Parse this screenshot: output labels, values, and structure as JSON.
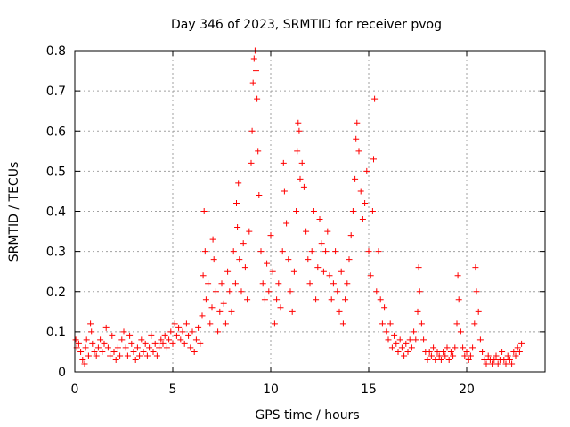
{
  "chart_data": {
    "type": "scatter",
    "title": "Day 346 of 2023, SRMTID for receiver pvog",
    "xlabel": "GPS time / hours",
    "ylabel": "SRMTID / TECUs",
    "xlim": [
      0,
      24
    ],
    "ylim": [
      0,
      0.8
    ],
    "xticks": [
      0,
      5,
      10,
      15,
      20
    ],
    "xtick_labels": [
      "0",
      "5",
      "10",
      "15",
      "20"
    ],
    "yticks": [
      0,
      0.1,
      0.2,
      0.3,
      0.4,
      0.5,
      0.6,
      0.7,
      0.8
    ],
    "ytick_labels": [
      "0",
      "0.1",
      "0.2",
      "0.3",
      "0.4",
      "0.5",
      "0.6",
      "0.7",
      "0.8"
    ],
    "grid": true,
    "marker": "+",
    "color": "#ff0000",
    "series": [
      {
        "name": "SRMTID",
        "points": [
          [
            0.05,
            0.08
          ],
          [
            0.1,
            0.06
          ],
          [
            0.2,
            0.07
          ],
          [
            0.3,
            0.05
          ],
          [
            0.4,
            0.03
          ],
          [
            0.5,
            0.02
          ],
          [
            0.55,
            0.06
          ],
          [
            0.6,
            0.08
          ],
          [
            0.7,
            0.04
          ],
          [
            0.8,
            0.12
          ],
          [
            0.85,
            0.1
          ],
          [
            0.9,
            0.07
          ],
          [
            1.0,
            0.05
          ],
          [
            1.1,
            0.04
          ],
          [
            1.2,
            0.06
          ],
          [
            1.3,
            0.08
          ],
          [
            1.4,
            0.05
          ],
          [
            1.5,
            0.07
          ],
          [
            1.6,
            0.11
          ],
          [
            1.7,
            0.06
          ],
          [
            1.8,
            0.04
          ],
          [
            1.9,
            0.09
          ],
          [
            2.0,
            0.05
          ],
          [
            2.1,
            0.03
          ],
          [
            2.2,
            0.06
          ],
          [
            2.3,
            0.04
          ],
          [
            2.4,
            0.08
          ],
          [
            2.5,
            0.1
          ],
          [
            2.6,
            0.06
          ],
          [
            2.7,
            0.04
          ],
          [
            2.8,
            0.09
          ],
          [
            2.9,
            0.07
          ],
          [
            3.0,
            0.05
          ],
          [
            3.1,
            0.03
          ],
          [
            3.2,
            0.06
          ],
          [
            3.3,
            0.04
          ],
          [
            3.4,
            0.08
          ],
          [
            3.5,
            0.05
          ],
          [
            3.6,
            0.07
          ],
          [
            3.7,
            0.04
          ],
          [
            3.8,
            0.06
          ],
          [
            3.9,
            0.09
          ],
          [
            4.0,
            0.05
          ],
          [
            4.1,
            0.07
          ],
          [
            4.2,
            0.04
          ],
          [
            4.3,
            0.06
          ],
          [
            4.4,
            0.08
          ],
          [
            4.5,
            0.07
          ],
          [
            4.6,
            0.09
          ],
          [
            4.7,
            0.06
          ],
          [
            4.8,
            0.08
          ],
          [
            4.9,
            0.1
          ],
          [
            5.0,
            0.07
          ],
          [
            5.1,
            0.12
          ],
          [
            5.2,
            0.09
          ],
          [
            5.3,
            0.11
          ],
          [
            5.4,
            0.08
          ],
          [
            5.5,
            0.1
          ],
          [
            5.6,
            0.07
          ],
          [
            5.7,
            0.12
          ],
          [
            5.8,
            0.09
          ],
          [
            5.9,
            0.06
          ],
          [
            6.0,
            0.1
          ],
          [
            6.1,
            0.05
          ],
          [
            6.2,
            0.08
          ],
          [
            6.3,
            0.11
          ],
          [
            6.4,
            0.07
          ],
          [
            6.5,
            0.14
          ],
          [
            6.55,
            0.24
          ],
          [
            6.6,
            0.4
          ],
          [
            6.65,
            0.3
          ],
          [
            6.7,
            0.18
          ],
          [
            6.8,
            0.22
          ],
          [
            6.9,
            0.12
          ],
          [
            7.0,
            0.16
          ],
          [
            7.05,
            0.33
          ],
          [
            7.1,
            0.28
          ],
          [
            7.2,
            0.2
          ],
          [
            7.3,
            0.1
          ],
          [
            7.4,
            0.15
          ],
          [
            7.5,
            0.22
          ],
          [
            7.6,
            0.17
          ],
          [
            7.7,
            0.12
          ],
          [
            7.8,
            0.25
          ],
          [
            7.9,
            0.2
          ],
          [
            8.0,
            0.15
          ],
          [
            8.1,
            0.3
          ],
          [
            8.2,
            0.22
          ],
          [
            8.25,
            0.42
          ],
          [
            8.3,
            0.36
          ],
          [
            8.35,
            0.47
          ],
          [
            8.4,
            0.28
          ],
          [
            8.5,
            0.2
          ],
          [
            8.6,
            0.32
          ],
          [
            8.7,
            0.26
          ],
          [
            8.8,
            0.18
          ],
          [
            8.9,
            0.35
          ],
          [
            9.0,
            0.52
          ],
          [
            9.05,
            0.6
          ],
          [
            9.1,
            0.72
          ],
          [
            9.15,
            0.78
          ],
          [
            9.2,
            0.8
          ],
          [
            9.25,
            0.75
          ],
          [
            9.3,
            0.68
          ],
          [
            9.35,
            0.55
          ],
          [
            9.4,
            0.44
          ],
          [
            9.5,
            0.3
          ],
          [
            9.6,
            0.22
          ],
          [
            9.7,
            0.18
          ],
          [
            9.8,
            0.27
          ],
          [
            9.9,
            0.2
          ],
          [
            10.0,
            0.34
          ],
          [
            10.1,
            0.25
          ],
          [
            10.2,
            0.12
          ],
          [
            10.3,
            0.18
          ],
          [
            10.4,
            0.22
          ],
          [
            10.5,
            0.16
          ],
          [
            10.6,
            0.3
          ],
          [
            10.65,
            0.52
          ],
          [
            10.7,
            0.45
          ],
          [
            10.8,
            0.37
          ],
          [
            10.9,
            0.28
          ],
          [
            11.0,
            0.2
          ],
          [
            11.1,
            0.15
          ],
          [
            11.2,
            0.25
          ],
          [
            11.3,
            0.4
          ],
          [
            11.35,
            0.55
          ],
          [
            11.4,
            0.62
          ],
          [
            11.45,
            0.6
          ],
          [
            11.5,
            0.48
          ],
          [
            11.6,
            0.52
          ],
          [
            11.7,
            0.46
          ],
          [
            11.8,
            0.35
          ],
          [
            11.9,
            0.28
          ],
          [
            12.0,
            0.22
          ],
          [
            12.1,
            0.3
          ],
          [
            12.2,
            0.4
          ],
          [
            12.3,
            0.18
          ],
          [
            12.4,
            0.26
          ],
          [
            12.5,
            0.38
          ],
          [
            12.6,
            0.32
          ],
          [
            12.7,
            0.25
          ],
          [
            12.8,
            0.3
          ],
          [
            12.9,
            0.35
          ],
          [
            13.0,
            0.24
          ],
          [
            13.1,
            0.18
          ],
          [
            13.2,
            0.22
          ],
          [
            13.3,
            0.3
          ],
          [
            13.4,
            0.2
          ],
          [
            13.5,
            0.15
          ],
          [
            13.6,
            0.25
          ],
          [
            13.7,
            0.12
          ],
          [
            13.8,
            0.18
          ],
          [
            13.9,
            0.22
          ],
          [
            14.0,
            0.28
          ],
          [
            14.1,
            0.34
          ],
          [
            14.2,
            0.4
          ],
          [
            14.3,
            0.48
          ],
          [
            14.35,
            0.58
          ],
          [
            14.4,
            0.62
          ],
          [
            14.5,
            0.55
          ],
          [
            14.6,
            0.45
          ],
          [
            14.7,
            0.38
          ],
          [
            14.8,
            0.42
          ],
          [
            14.9,
            0.5
          ],
          [
            15.0,
            0.3
          ],
          [
            15.1,
            0.24
          ],
          [
            15.2,
            0.4
          ],
          [
            15.25,
            0.53
          ],
          [
            15.3,
            0.68
          ],
          [
            15.4,
            0.2
          ],
          [
            15.5,
            0.3
          ],
          [
            15.6,
            0.18
          ],
          [
            15.7,
            0.12
          ],
          [
            15.8,
            0.16
          ],
          [
            15.9,
            0.1
          ],
          [
            16.0,
            0.08
          ],
          [
            16.1,
            0.12
          ],
          [
            16.2,
            0.06
          ],
          [
            16.3,
            0.09
          ],
          [
            16.4,
            0.07
          ],
          [
            16.5,
            0.05
          ],
          [
            16.6,
            0.08
          ],
          [
            16.7,
            0.06
          ],
          [
            16.8,
            0.04
          ],
          [
            16.9,
            0.07
          ],
          [
            17.0,
            0.05
          ],
          [
            17.1,
            0.08
          ],
          [
            17.2,
            0.06
          ],
          [
            17.3,
            0.1
          ],
          [
            17.4,
            0.08
          ],
          [
            17.5,
            0.15
          ],
          [
            17.55,
            0.26
          ],
          [
            17.6,
            0.2
          ],
          [
            17.7,
            0.12
          ],
          [
            17.8,
            0.08
          ],
          [
            17.9,
            0.05
          ],
          [
            18.0,
            0.03
          ],
          [
            18.1,
            0.05
          ],
          [
            18.2,
            0.04
          ],
          [
            18.3,
            0.06
          ],
          [
            18.4,
            0.03
          ],
          [
            18.5,
            0.05
          ],
          [
            18.6,
            0.04
          ],
          [
            18.7,
            0.03
          ],
          [
            18.8,
            0.05
          ],
          [
            18.9,
            0.04
          ],
          [
            19.0,
            0.06
          ],
          [
            19.1,
            0.03
          ],
          [
            19.2,
            0.05
          ],
          [
            19.3,
            0.04
          ],
          [
            19.4,
            0.06
          ],
          [
            19.5,
            0.12
          ],
          [
            19.55,
            0.24
          ],
          [
            19.6,
            0.18
          ],
          [
            19.7,
            0.1
          ],
          [
            19.8,
            0.06
          ],
          [
            19.9,
            0.04
          ],
          [
            20.0,
            0.05
          ],
          [
            20.1,
            0.03
          ],
          [
            20.2,
            0.04
          ],
          [
            20.3,
            0.06
          ],
          [
            20.4,
            0.12
          ],
          [
            20.45,
            0.26
          ],
          [
            20.5,
            0.2
          ],
          [
            20.6,
            0.15
          ],
          [
            20.7,
            0.08
          ],
          [
            20.8,
            0.05
          ],
          [
            20.9,
            0.03
          ],
          [
            21.0,
            0.02
          ],
          [
            21.1,
            0.04
          ],
          [
            21.2,
            0.03
          ],
          [
            21.3,
            0.02
          ],
          [
            21.4,
            0.03
          ],
          [
            21.5,
            0.04
          ],
          [
            21.6,
            0.02
          ],
          [
            21.7,
            0.03
          ],
          [
            21.8,
            0.05
          ],
          [
            21.9,
            0.03
          ],
          [
            22.0,
            0.02
          ],
          [
            22.1,
            0.04
          ],
          [
            22.2,
            0.03
          ],
          [
            22.3,
            0.02
          ],
          [
            22.4,
            0.05
          ],
          [
            22.5,
            0.04
          ],
          [
            22.6,
            0.06
          ],
          [
            22.7,
            0.05
          ],
          [
            22.8,
            0.07
          ]
        ]
      }
    ]
  }
}
